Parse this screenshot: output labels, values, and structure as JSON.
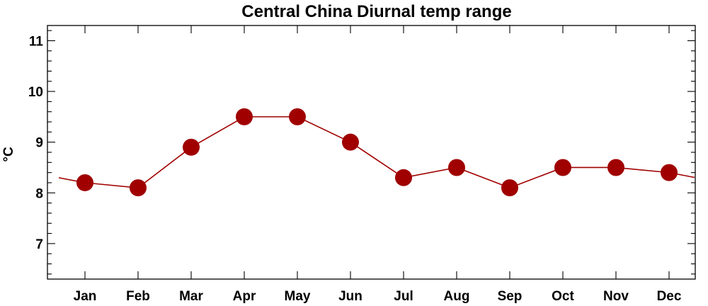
{
  "chart_data": {
    "type": "line",
    "title": "Central China Diurnal temp range",
    "xlabel": "",
    "ylabel": "°C",
    "categories": [
      "Jan",
      "Feb",
      "Mar",
      "Apr",
      "May",
      "Jun",
      "Jul",
      "Aug",
      "Sep",
      "Oct",
      "Nov",
      "Dec"
    ],
    "series": [
      {
        "values": [
          8.2,
          8.1,
          8.9,
          9.5,
          9.5,
          9.0,
          8.3,
          8.5,
          8.1,
          8.5,
          8.5,
          8.4
        ]
      }
    ],
    "ylim": [
      6.3,
      11.3
    ],
    "yticks": [
      7,
      8,
      9,
      10,
      11
    ],
    "wrap_line": true,
    "grid": false,
    "legend": "none",
    "colors": {
      "series": "#a00000",
      "axis": "#000000"
    }
  }
}
